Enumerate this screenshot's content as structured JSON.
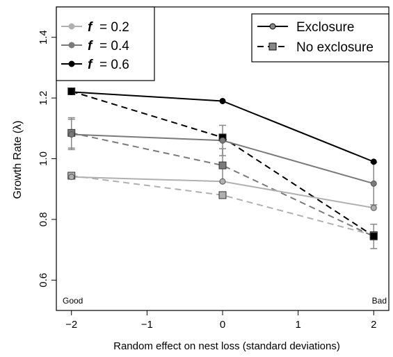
{
  "chart_data": {
    "type": "line",
    "xlabel": "Random effect on nest loss (standard deviations)",
    "ylabel": "Growth Rate (λ)",
    "xlim": [
      -2.2,
      2.2
    ],
    "ylim": [
      0.5,
      1.5
    ],
    "x_ticks": [
      -2,
      -1,
      0,
      1,
      2
    ],
    "x_tick_labels": [
      "−2",
      "−1",
      "0",
      "1",
      "2"
    ],
    "y_ticks": [
      0.6,
      0.8,
      1.0,
      1.2,
      1.4
    ],
    "y_tick_labels": [
      "0.6",
      "0.8",
      "1.0",
      "1.2",
      "1.4"
    ],
    "corner_labels": {
      "left": "Good",
      "right": "Bad"
    },
    "legend_f": {
      "symbol": "f",
      "entries": [
        {
          "label": "= 0.2",
          "color": "#b0b0b0"
        },
        {
          "label": "= 0.4",
          "color": "#7a7a7a"
        },
        {
          "label": "= 0.6",
          "color": "#000000"
        }
      ]
    },
    "legend_treatment": {
      "entries": [
        {
          "label": "Exclosure",
          "style": "solid",
          "marker": "circle"
        },
        {
          "label": "No exclosure",
          "style": "dashed",
          "marker": "square"
        }
      ]
    },
    "series": [
      {
        "f": 0.2,
        "treatment": "Exclosure",
        "color": "#b0b0b0",
        "style": "solid",
        "marker": "circle",
        "x": [
          -2,
          0,
          2
        ],
        "y": [
          0.94,
          0.925,
          0.838
        ],
        "err": [
          0,
          0,
          0
        ]
      },
      {
        "f": 0.4,
        "treatment": "Exclosure",
        "color": "#7a7a7a",
        "style": "solid",
        "marker": "circle",
        "x": [
          -2,
          0,
          2
        ],
        "y": [
          1.08,
          1.06,
          0.918
        ],
        "err": [
          0.05,
          0.05,
          0.07
        ]
      },
      {
        "f": 0.6,
        "treatment": "Exclosure",
        "color": "#000000",
        "style": "solid",
        "marker": "circle",
        "x": [
          -2,
          0,
          2
        ],
        "y": [
          1.22,
          1.19,
          0.99
        ],
        "err": [
          0,
          0,
          0
        ]
      },
      {
        "f": 0.2,
        "treatment": "No exclosure",
        "color": "#b0b0b0",
        "style": "dashed",
        "marker": "square",
        "x": [
          -2,
          0,
          2
        ],
        "y": [
          0.944,
          0.88,
          0.748
        ],
        "err": [
          0,
          0,
          0
        ]
      },
      {
        "f": 0.4,
        "treatment": "No exclosure",
        "color": "#7a7a7a",
        "style": "dashed",
        "marker": "square",
        "x": [
          -2,
          0,
          2
        ],
        "y": [
          1.085,
          0.978,
          0.744
        ],
        "err": [
          0.05,
          0.055,
          0.04
        ]
      },
      {
        "f": 0.6,
        "treatment": "No exclosure",
        "color": "#000000",
        "style": "dashed",
        "marker": "square",
        "x": [
          -2,
          0,
          2
        ],
        "y": [
          1.222,
          1.07,
          0.745
        ],
        "err": [
          0,
          0,
          0
        ]
      }
    ]
  }
}
